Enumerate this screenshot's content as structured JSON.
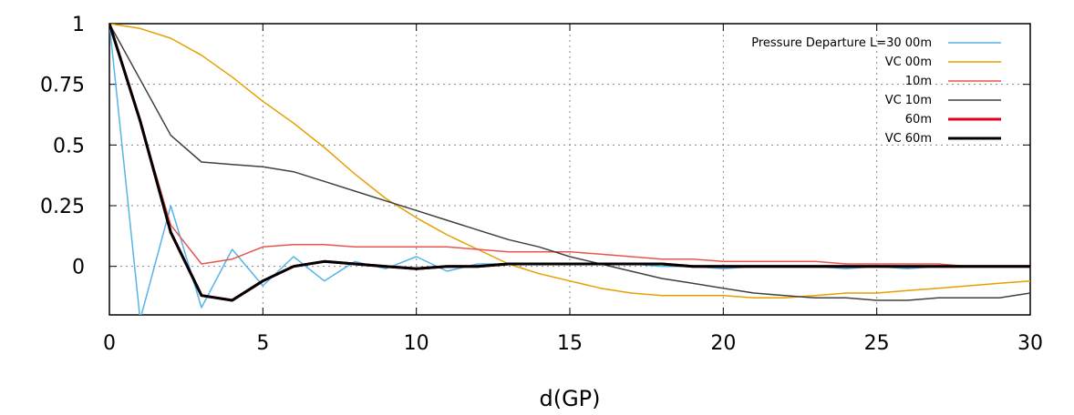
{
  "chart_data": {
    "type": "line",
    "title": "",
    "xlabel": "d(GP)",
    "ylabel": "",
    "xlim": [
      0,
      30
    ],
    "ylim": [
      -0.2,
      1
    ],
    "xticks": [
      0,
      5,
      10,
      15,
      20,
      25,
      30
    ],
    "xtick_labels": [
      "0",
      "5",
      "10",
      "15",
      "20",
      "25",
      "30"
    ],
    "yticks": [
      0,
      0.25,
      0.5,
      0.75,
      1
    ],
    "ytick_labels": [
      "0",
      "0.25",
      "0.5",
      "0.75",
      "1"
    ],
    "grid": true,
    "legend_position": "top-right",
    "series": [
      {
        "name": "Pressure Departure L=30 00m",
        "color": "#56b4e9",
        "style": "thin",
        "x": [
          0,
          1,
          2,
          3,
          4,
          5,
          6,
          7,
          8,
          9,
          10,
          11,
          12,
          13,
          14,
          15,
          16,
          17,
          18,
          19,
          20,
          21,
          22,
          23,
          24,
          25,
          26,
          27,
          28,
          29,
          30
        ],
        "y": [
          1,
          -0.22,
          0.25,
          -0.17,
          0.07,
          -0.08,
          0.04,
          -0.06,
          0.02,
          -0.01,
          0.04,
          -0.02,
          0.01,
          0.01,
          0.01,
          0.01,
          0.01,
          0.01,
          0.0,
          0.0,
          -0.01,
          0.0,
          0.0,
          0.0,
          -0.01,
          0.0,
          -0.01,
          0.0,
          0.0,
          0.0,
          0.0
        ]
      },
      {
        "name": "VC 00m",
        "color": "#e69f00",
        "style": "thin",
        "x": [
          0,
          1,
          2,
          3,
          4,
          5,
          6,
          7,
          8,
          9,
          10,
          11,
          12,
          13,
          14,
          15,
          16,
          17,
          18,
          19,
          20,
          21,
          22,
          23,
          24,
          25,
          26,
          27,
          28,
          29,
          30
        ],
        "y": [
          1,
          0.98,
          0.94,
          0.87,
          0.78,
          0.68,
          0.59,
          0.49,
          0.38,
          0.28,
          0.2,
          0.13,
          0.07,
          0.01,
          -0.03,
          -0.06,
          -0.09,
          -0.11,
          -0.12,
          -0.12,
          -0.12,
          -0.13,
          -0.13,
          -0.12,
          -0.11,
          -0.11,
          -0.1,
          -0.09,
          -0.08,
          -0.07,
          -0.06
        ]
      },
      {
        "name": "10m",
        "color": "#e8554e",
        "style": "thin",
        "x": [
          0,
          1,
          2,
          3,
          4,
          5,
          6,
          7,
          8,
          9,
          10,
          11,
          12,
          13,
          14,
          15,
          16,
          17,
          18,
          19,
          20,
          21,
          22,
          23,
          24,
          25,
          26,
          27,
          28,
          29,
          30
        ],
        "y": [
          1,
          0.6,
          0.17,
          0.01,
          0.03,
          0.08,
          0.09,
          0.09,
          0.08,
          0.08,
          0.08,
          0.08,
          0.07,
          0.06,
          0.06,
          0.06,
          0.05,
          0.04,
          0.03,
          0.03,
          0.02,
          0.02,
          0.02,
          0.02,
          0.01,
          0.01,
          0.01,
          0.01,
          0.0,
          0.0,
          0.0
        ]
      },
      {
        "name": "VC 10m",
        "color": "#404040",
        "style": "thin",
        "x": [
          0,
          1,
          2,
          3,
          4,
          5,
          6,
          7,
          8,
          9,
          10,
          11,
          12,
          13,
          14,
          15,
          16,
          17,
          18,
          19,
          20,
          21,
          22,
          23,
          24,
          25,
          26,
          27,
          28,
          29,
          30
        ],
        "y": [
          1,
          0.77,
          0.54,
          0.43,
          0.42,
          0.41,
          0.39,
          0.35,
          0.31,
          0.27,
          0.23,
          0.19,
          0.15,
          0.11,
          0.08,
          0.04,
          0.01,
          -0.02,
          -0.05,
          -0.07,
          -0.09,
          -0.11,
          -0.12,
          -0.13,
          -0.13,
          -0.14,
          -0.14,
          -0.13,
          -0.13,
          -0.13,
          -0.11
        ]
      },
      {
        "name": "60m",
        "color": "#e3001b",
        "style": "thick",
        "x": [
          0,
          1,
          2,
          3,
          4,
          5,
          6,
          7,
          8,
          9,
          10,
          11,
          12,
          13,
          14,
          15,
          16,
          17,
          18,
          19,
          20,
          21,
          22,
          23,
          24,
          25,
          26,
          27,
          28,
          29,
          30
        ],
        "y": [
          1,
          0.6,
          0.14,
          -0.12,
          -0.14,
          -0.06,
          0.0,
          0.02,
          0.01,
          0.0,
          -0.01,
          0.0,
          0.0,
          0.01,
          0.01,
          0.01,
          0.01,
          0.01,
          0.01,
          0.0,
          0.0,
          0.0,
          0.0,
          0.0,
          0.0,
          0.0,
          0.0,
          0.0,
          0.0,
          0.0,
          0.0
        ]
      },
      {
        "name": "VC 60m",
        "color": "#000000",
        "style": "thick",
        "x": [
          0,
          1,
          2,
          3,
          4,
          5,
          6,
          7,
          8,
          9,
          10,
          11,
          12,
          13,
          14,
          15,
          16,
          17,
          18,
          19,
          20,
          21,
          22,
          23,
          24,
          25,
          26,
          27,
          28,
          29,
          30
        ],
        "y": [
          1,
          0.6,
          0.14,
          -0.12,
          -0.14,
          -0.06,
          0.0,
          0.02,
          0.01,
          0.0,
          -0.01,
          0.0,
          0.0,
          0.01,
          0.01,
          0.01,
          0.01,
          0.01,
          0.01,
          0.0,
          0.0,
          0.0,
          0.0,
          0.0,
          0.0,
          0.0,
          0.0,
          0.0,
          0.0,
          0.0,
          0.0
        ]
      }
    ]
  }
}
